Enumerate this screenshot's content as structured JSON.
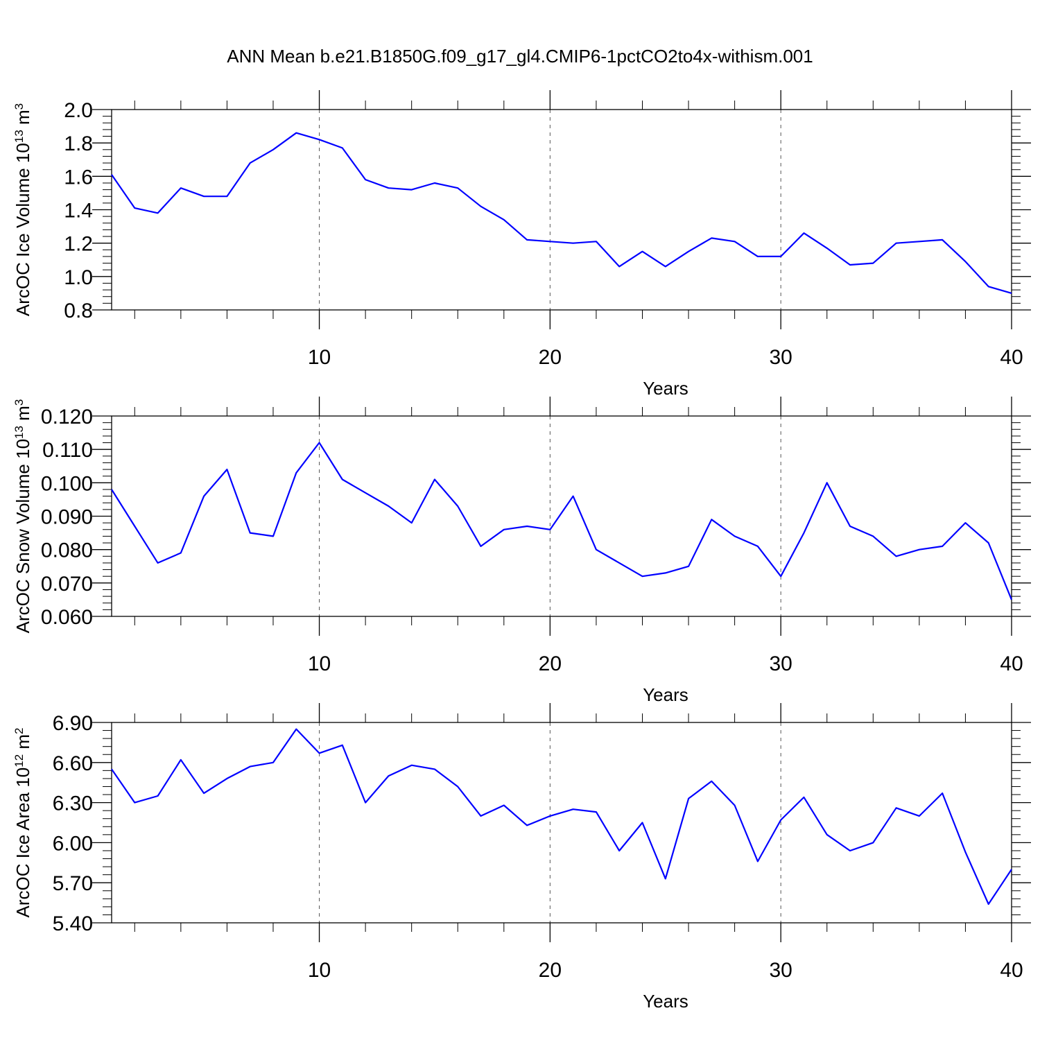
{
  "figure_title": "ANN Mean b.e21.B1850G.f09_g17_gl4.CMIP6-1pctCO2to4x-withism.001",
  "colors": {
    "line": "#0000ff",
    "axis": "#000000",
    "grid": "#555555",
    "background": "#ffffff"
  },
  "chart_data": [
    {
      "type": "line",
      "title": "",
      "xlabel": "Years",
      "ylabel": "ArcOC Ice Volume 10",
      "ylabel_sup": "13",
      "ylabel_unit": " m",
      "ylabel_unit_sup": "3",
      "xlim": [
        1,
        40
      ],
      "ylim": [
        0.8,
        2.0
      ],
      "x_ticks": [
        10,
        20,
        30,
        40
      ],
      "x_tick_labels": [
        "10",
        "20",
        "30",
        "40"
      ],
      "y_ticks": [
        0.8,
        1.0,
        1.2,
        1.4,
        1.6,
        1.8,
        2.0
      ],
      "y_tick_labels": [
        "0.8",
        "1.0",
        "1.2",
        "1.4",
        "1.6",
        "1.8",
        "2.0"
      ],
      "vertical_grid": [
        10,
        20,
        30
      ],
      "series": [
        {
          "x": [
            1,
            2,
            3,
            4,
            5,
            6,
            7,
            8,
            9,
            10,
            11,
            12,
            13,
            14,
            15,
            16,
            17,
            18,
            19,
            20,
            21,
            22,
            23,
            24,
            25,
            26,
            27,
            28,
            29,
            30,
            31,
            32,
            33,
            34,
            35,
            36,
            37,
            38,
            39,
            40
          ],
          "values": [
            1.61,
            1.41,
            1.38,
            1.53,
            1.48,
            1.48,
            1.68,
            1.76,
            1.86,
            1.82,
            1.77,
            1.58,
            1.53,
            1.52,
            1.56,
            1.53,
            1.42,
            1.34,
            1.22,
            1.21,
            1.2,
            1.21,
            1.06,
            1.15,
            1.06,
            1.15,
            1.23,
            1.21,
            1.12,
            1.12,
            1.26,
            1.17,
            1.07,
            1.08,
            1.2,
            1.21,
            1.22,
            1.09,
            0.94,
            0.9
          ]
        }
      ]
    },
    {
      "type": "line",
      "title": "",
      "xlabel": "Years",
      "ylabel": "ArcOC Snow Volume 10",
      "ylabel_sup": "13",
      "ylabel_unit": " m",
      "ylabel_unit_sup": "3",
      "xlim": [
        1,
        40
      ],
      "ylim": [
        0.06,
        0.12
      ],
      "x_ticks": [
        10,
        20,
        30,
        40
      ],
      "x_tick_labels": [
        "10",
        "20",
        "30",
        "40"
      ],
      "y_ticks": [
        0.06,
        0.07,
        0.08,
        0.09,
        0.1,
        0.11,
        0.12
      ],
      "y_tick_labels": [
        "0.060",
        "0.070",
        "0.080",
        "0.090",
        "0.100",
        "0.110",
        "0.120"
      ],
      "vertical_grid": [
        10,
        20,
        30
      ],
      "series": [
        {
          "x": [
            1,
            2,
            3,
            4,
            5,
            6,
            7,
            8,
            9,
            10,
            11,
            12,
            13,
            14,
            15,
            16,
            17,
            18,
            19,
            20,
            21,
            22,
            23,
            24,
            25,
            26,
            27,
            28,
            29,
            30,
            31,
            32,
            33,
            34,
            35,
            36,
            37,
            38,
            39,
            40
          ],
          "values": [
            0.098,
            0.087,
            0.076,
            0.079,
            0.096,
            0.104,
            0.085,
            0.084,
            0.103,
            0.112,
            0.101,
            0.097,
            0.093,
            0.088,
            0.101,
            0.093,
            0.081,
            0.086,
            0.087,
            0.086,
            0.096,
            0.08,
            0.076,
            0.072,
            0.073,
            0.075,
            0.089,
            0.084,
            0.081,
            0.072,
            0.085,
            0.1,
            0.087,
            0.084,
            0.078,
            0.08,
            0.081,
            0.088,
            0.082,
            0.065
          ]
        }
      ]
    },
    {
      "type": "line",
      "title": "",
      "xlabel": "Years",
      "ylabel": "ArcOC Ice Area 10",
      "ylabel_sup": "12",
      "ylabel_unit": " m",
      "ylabel_unit_sup": "2",
      "xlim": [
        1,
        40
      ],
      "ylim": [
        5.4,
        6.9
      ],
      "x_ticks": [
        10,
        20,
        30,
        40
      ],
      "x_tick_labels": [
        "10",
        "20",
        "30",
        "40"
      ],
      "y_ticks": [
        5.4,
        5.7,
        6.0,
        6.3,
        6.6,
        6.9
      ],
      "y_tick_labels": [
        "5.40",
        "5.70",
        "6.00",
        "6.30",
        "6.60",
        "6.90"
      ],
      "vertical_grid": [
        10,
        20,
        30
      ],
      "series": [
        {
          "x": [
            1,
            2,
            3,
            4,
            5,
            6,
            7,
            8,
            9,
            10,
            11,
            12,
            13,
            14,
            15,
            16,
            17,
            18,
            19,
            20,
            21,
            22,
            23,
            24,
            25,
            26,
            27,
            28,
            29,
            30,
            31,
            32,
            33,
            34,
            35,
            36,
            37,
            38,
            39,
            40
          ],
          "values": [
            6.55,
            6.3,
            6.35,
            6.62,
            6.37,
            6.48,
            6.57,
            6.6,
            6.85,
            6.67,
            6.73,
            6.3,
            6.5,
            6.58,
            6.55,
            6.42,
            6.2,
            6.28,
            6.13,
            6.2,
            6.25,
            6.23,
            5.94,
            6.15,
            5.73,
            6.33,
            6.46,
            6.28,
            5.86,
            6.17,
            6.34,
            6.06,
            5.94,
            6.0,
            6.26,
            6.2,
            6.37,
            5.93,
            5.54,
            5.8
          ]
        }
      ]
    }
  ]
}
